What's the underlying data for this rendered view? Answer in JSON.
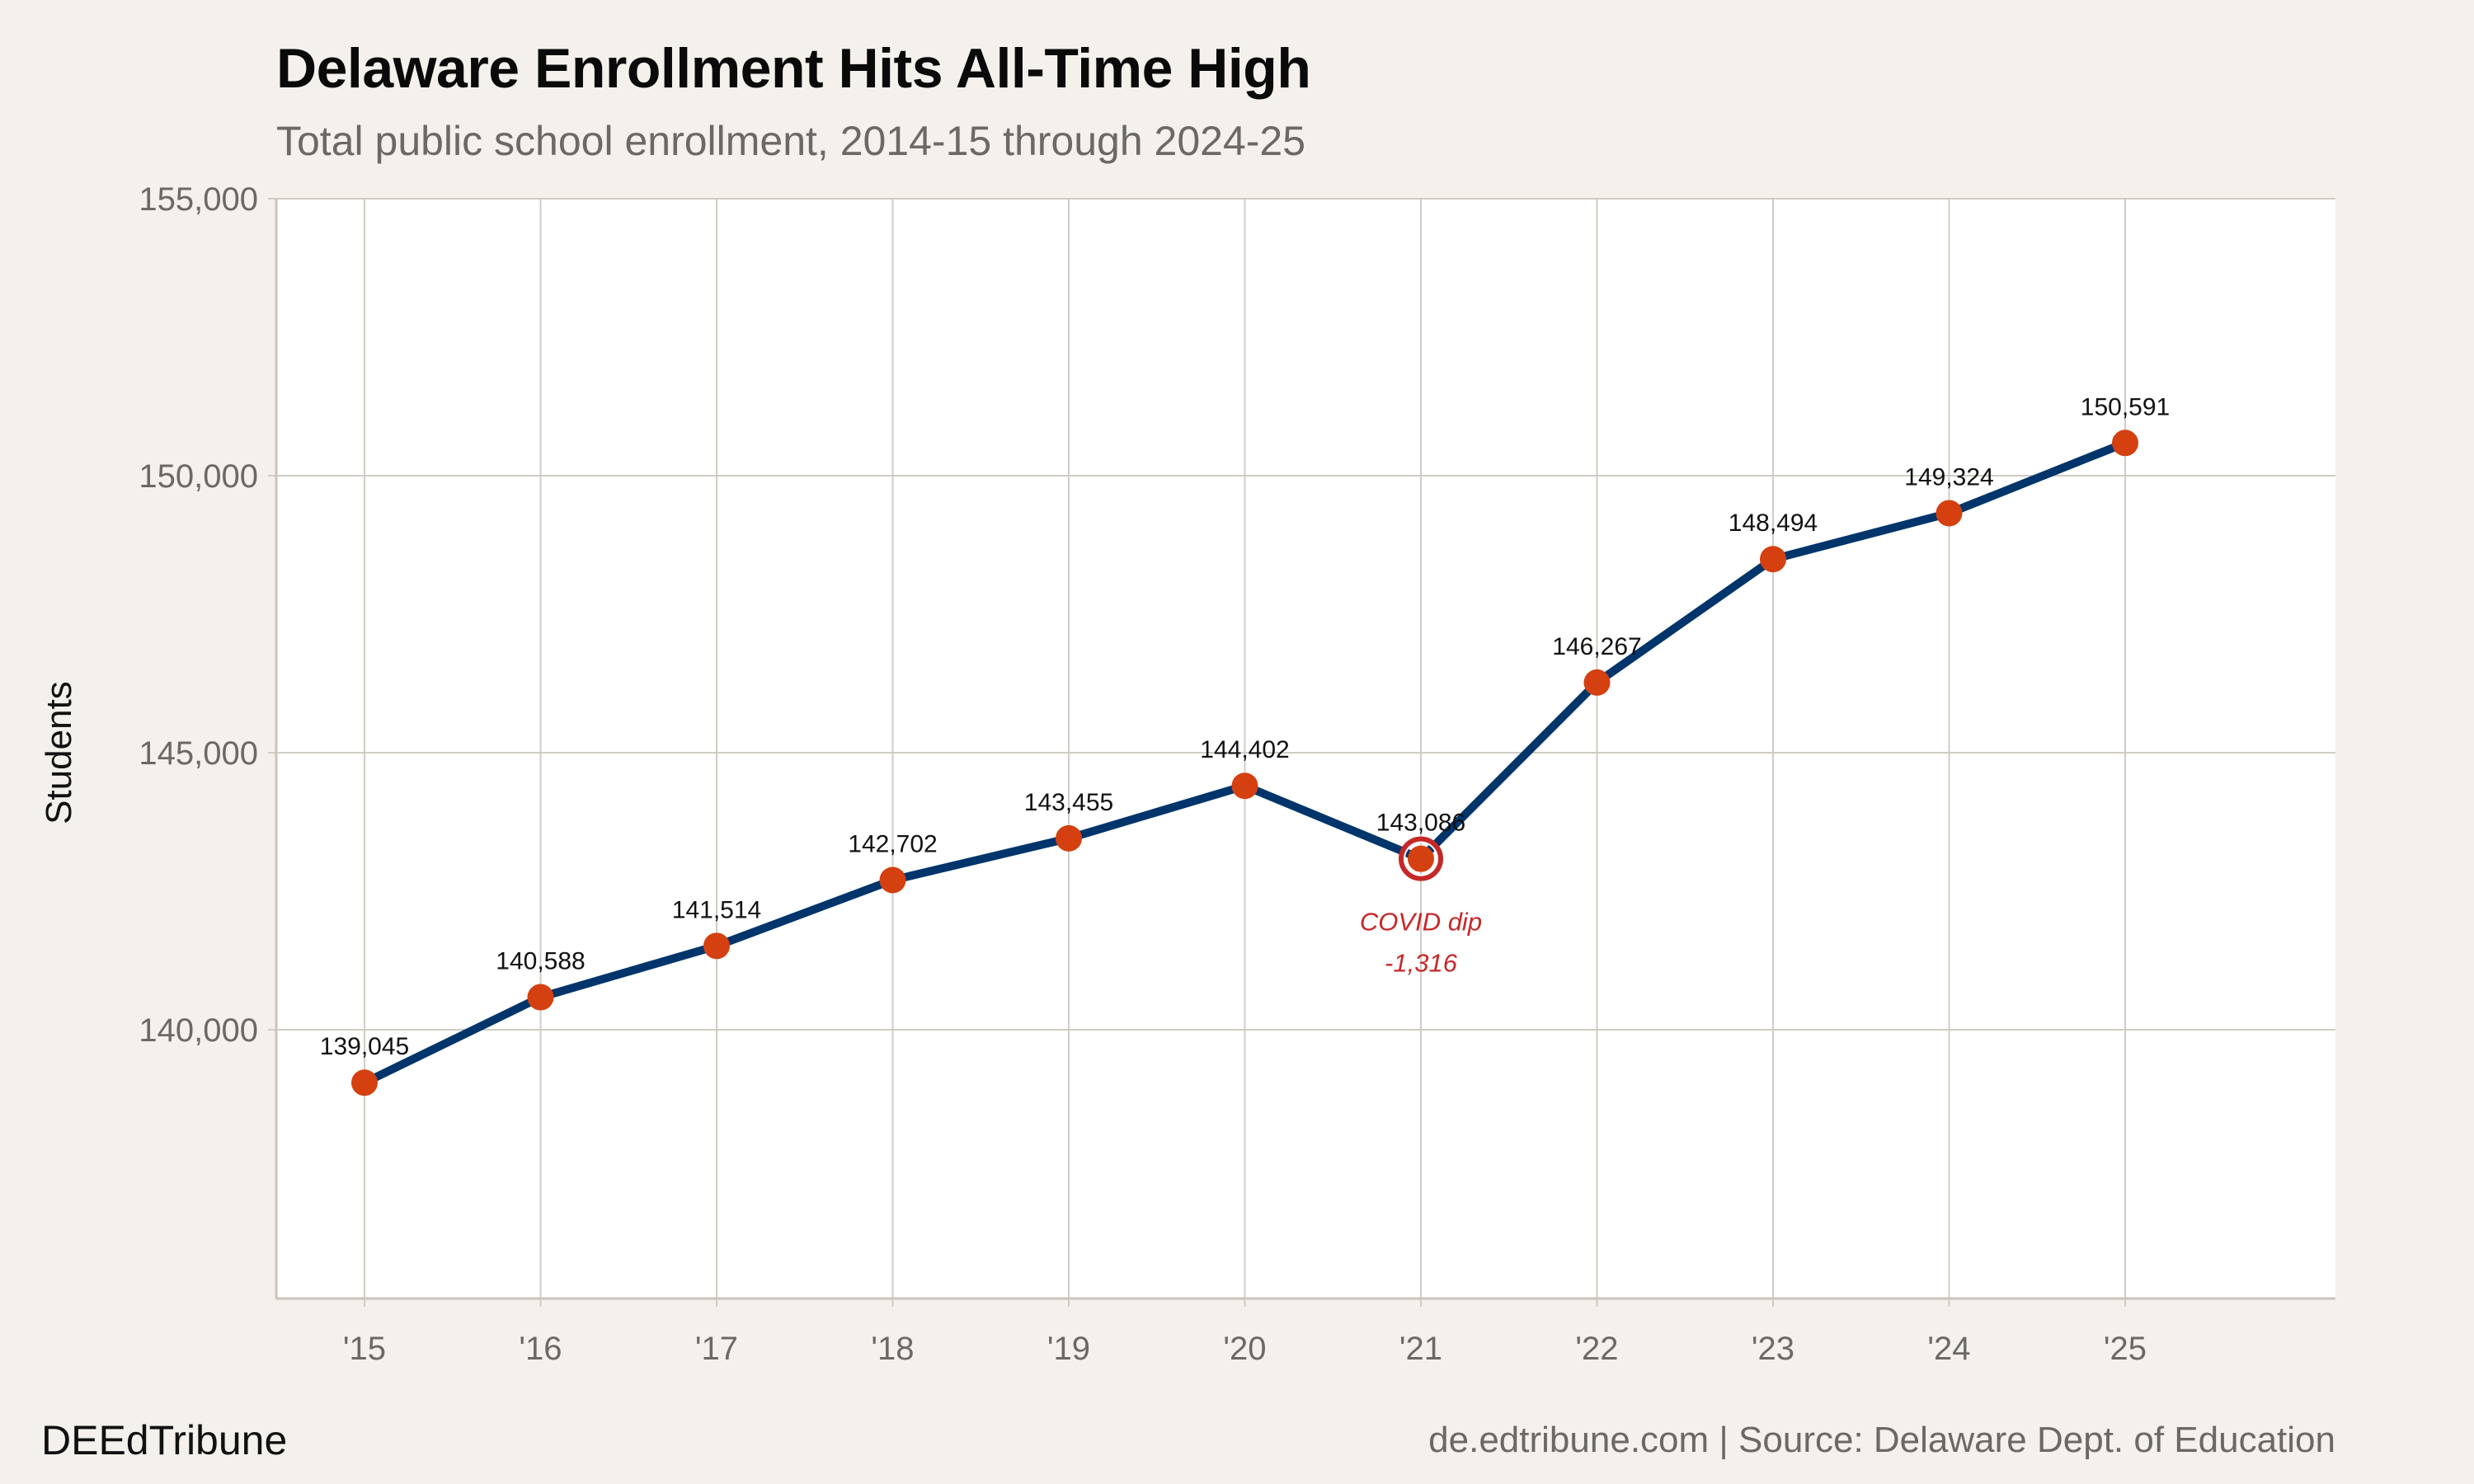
{
  "header": {
    "title": "Delaware Enrollment Hits All-Time High",
    "subtitle": "Total public school enrollment, 2014-15 through 2024-25"
  },
  "footer": {
    "brand": "DEEdTribune",
    "source": "de.edtribune.com | Source: Delaware Dept. of Education"
  },
  "colors": {
    "background": "#f4f1ec",
    "plot_background": "#ffffff",
    "grid": "#d0ccc5",
    "line": "#00356b",
    "marker": "#d4400f",
    "highlight": "#c62828"
  },
  "chart_data": {
    "type": "line",
    "title": "Delaware Enrollment Hits All-Time High",
    "subtitle": "Total public school enrollment, 2014-15 through 2024-25",
    "xlabel": "",
    "ylabel": "Students",
    "categories": [
      "'15",
      "'16",
      "'17",
      "'18",
      "'19",
      "'20",
      "'21",
      "'22",
      "'23",
      "'24",
      "'25"
    ],
    "values": [
      139045,
      140588,
      141514,
      142702,
      143455,
      144402,
      143086,
      146267,
      148494,
      149324,
      150591
    ],
    "data_labels": [
      "139,045",
      "140,588",
      "141,514",
      "142,702",
      "143,455",
      "144,402",
      "143,086",
      "146,267",
      "148,494",
      "149,324",
      "150,591"
    ],
    "yticks": [
      140000,
      145000,
      150000,
      155000
    ],
    "ytick_labels": [
      "140,000",
      "145,000",
      "150,000",
      "155,000"
    ],
    "ylim": [
      135150,
      155000
    ],
    "grid": true,
    "legend": "none",
    "annotation": {
      "category": "'21",
      "lines": [
        "COVID dip",
        "-1,316"
      ]
    }
  }
}
